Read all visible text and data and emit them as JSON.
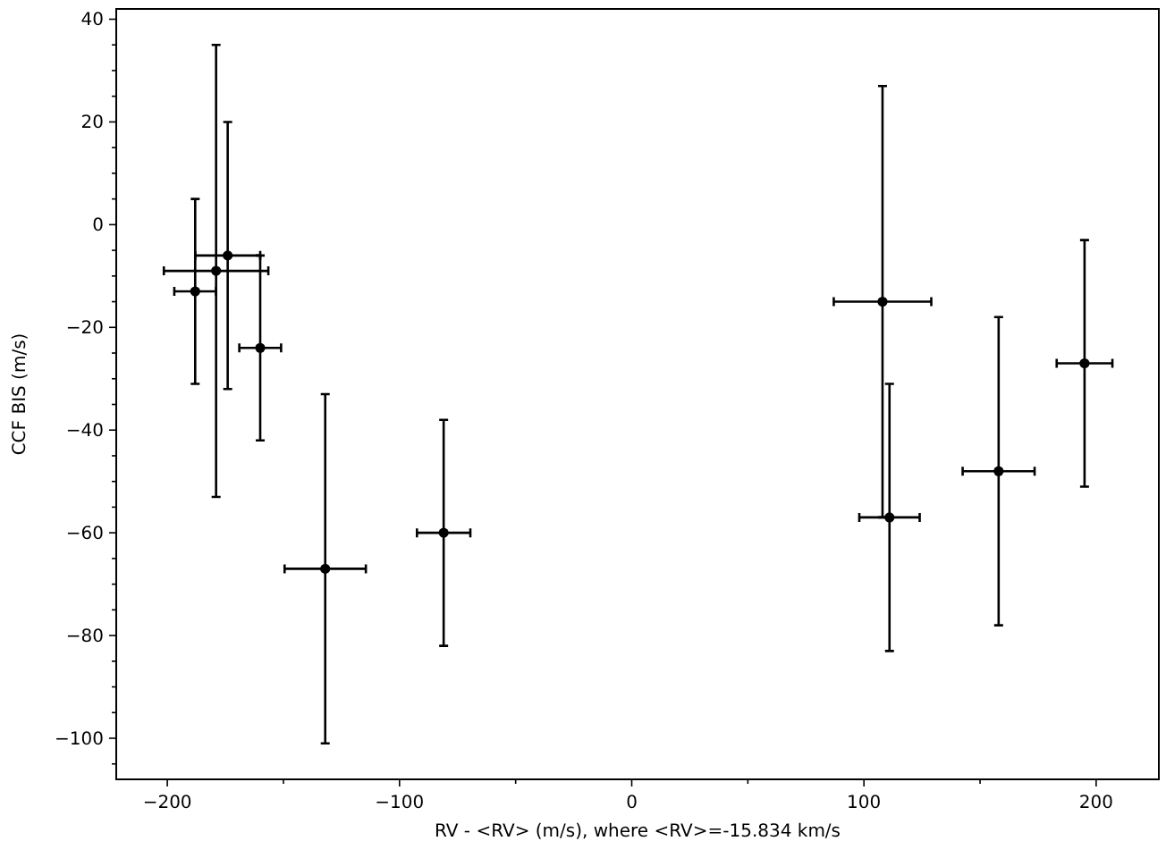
{
  "chart_data": {
    "type": "scatter",
    "xlabel": "RV - <RV> (m/s), where <RV>=-15.834 km/s",
    "ylabel": "CCF BIS (m/s)",
    "xlim": [
      -222,
      227
    ],
    "ylim": [
      -108,
      42
    ],
    "xticks": [
      -200,
      {
        "value": -150,
        "label": null
      },
      -100,
      {
        "value": -50,
        "label": null
      },
      0,
      {
        "value": 50,
        "label": null
      },
      100,
      {
        "value": 150,
        "label": null
      },
      200
    ],
    "yticks": [
      {
        "value": -105,
        "label": null
      },
      -100,
      {
        "value": -95,
        "label": null
      },
      {
        "value": -90,
        "label": null
      },
      {
        "value": -85,
        "label": null
      },
      -80,
      {
        "value": -75,
        "label": null
      },
      {
        "value": -70,
        "label": null
      },
      {
        "value": -65,
        "label": null
      },
      -60,
      {
        "value": -55,
        "label": null
      },
      {
        "value": -50,
        "label": null
      },
      {
        "value": -45,
        "label": null
      },
      -40,
      {
        "value": -35,
        "label": null
      },
      {
        "value": -30,
        "label": null
      },
      {
        "value": -25,
        "label": null
      },
      -20,
      {
        "value": -15,
        "label": null
      },
      {
        "value": -10,
        "label": null
      },
      {
        "value": -5,
        "label": null
      },
      0,
      {
        "value": 5,
        "label": null
      },
      {
        "value": 10,
        "label": null
      },
      {
        "value": 15,
        "label": null
      },
      20,
      {
        "value": 25,
        "label": null
      },
      {
        "value": 30,
        "label": null
      },
      {
        "value": 35,
        "label": null
      },
      40
    ],
    "marker": "circle",
    "grid": false,
    "x": [
      -188,
      -179,
      -174,
      -160,
      -132,
      -81,
      108,
      111,
      158,
      195
    ],
    "series": [
      {
        "color": "#000000",
        "values": [
          -13,
          -9,
          -6,
          -24,
          -67,
          -60,
          -15,
          -57,
          -48,
          -27
        ],
        "errors": [
          18,
          44,
          26,
          18,
          34,
          22,
          42,
          26,
          30,
          24
        ],
        "xerrors": [
          9,
          22.5,
          14,
          9,
          17.5,
          11.5,
          21,
          13,
          15.5,
          12
        ]
      }
    ]
  }
}
